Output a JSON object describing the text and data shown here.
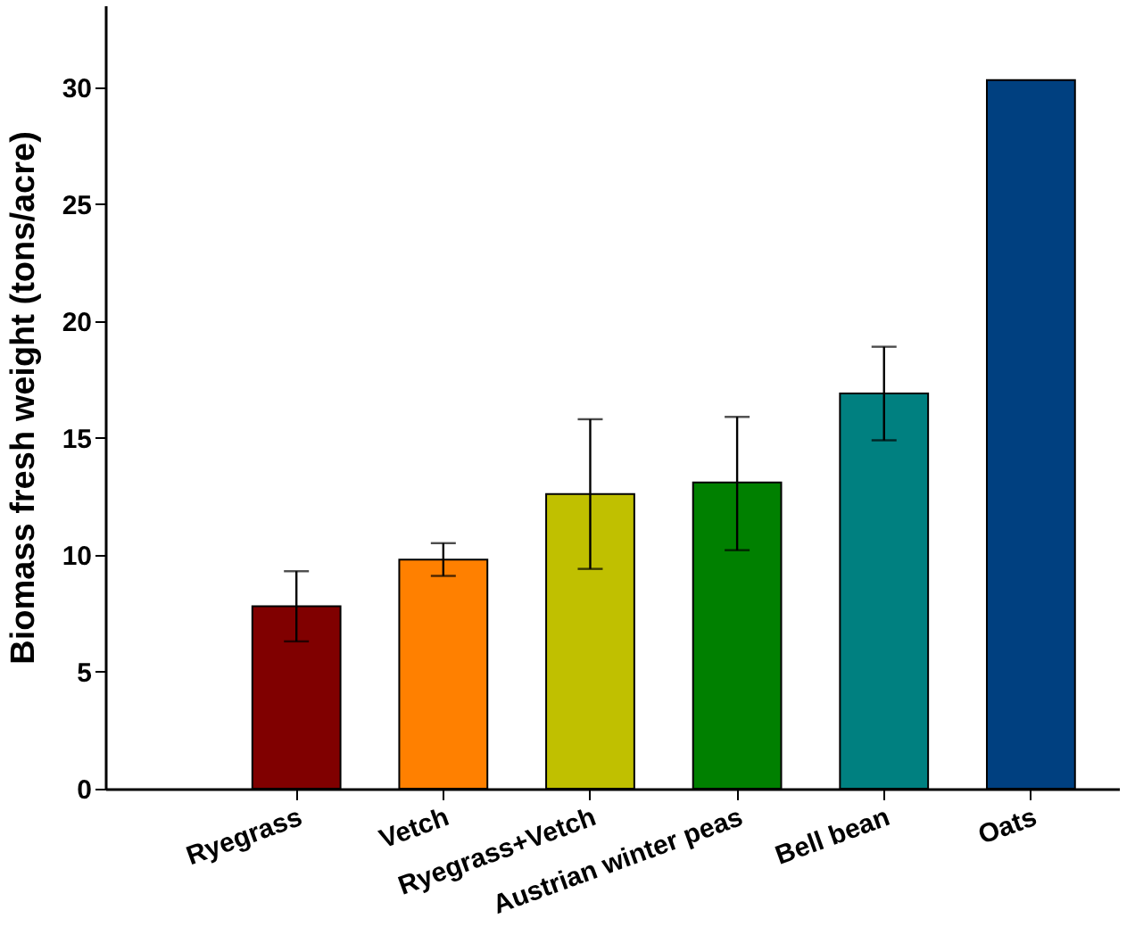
{
  "chart_data": {
    "type": "bar",
    "ylabel": "Biomass fresh weight (tons/acre)",
    "categories": [
      "Ryegrass",
      "Vetch",
      "Ryegrass+Vetch",
      "Austrian winter peas",
      "Bell bean",
      "Oats"
    ],
    "values": [
      7.8,
      9.8,
      12.6,
      13.1,
      16.9,
      30.3
    ],
    "colors": [
      "#800000",
      "#ff8000",
      "#c0c000",
      "#008000",
      "#008080",
      "#004080"
    ],
    "errors": [
      [
        6.3,
        9.3
      ],
      [
        9.1,
        10.5
      ],
      [
        9.4,
        15.8
      ],
      [
        10.2,
        15.9
      ],
      [
        14.9,
        18.9
      ],
      null
    ],
    "ylim": [
      0,
      33.5
    ],
    "yticks": [
      0,
      5,
      10,
      15,
      20,
      25,
      30
    ],
    "grid": false,
    "legend": false
  }
}
